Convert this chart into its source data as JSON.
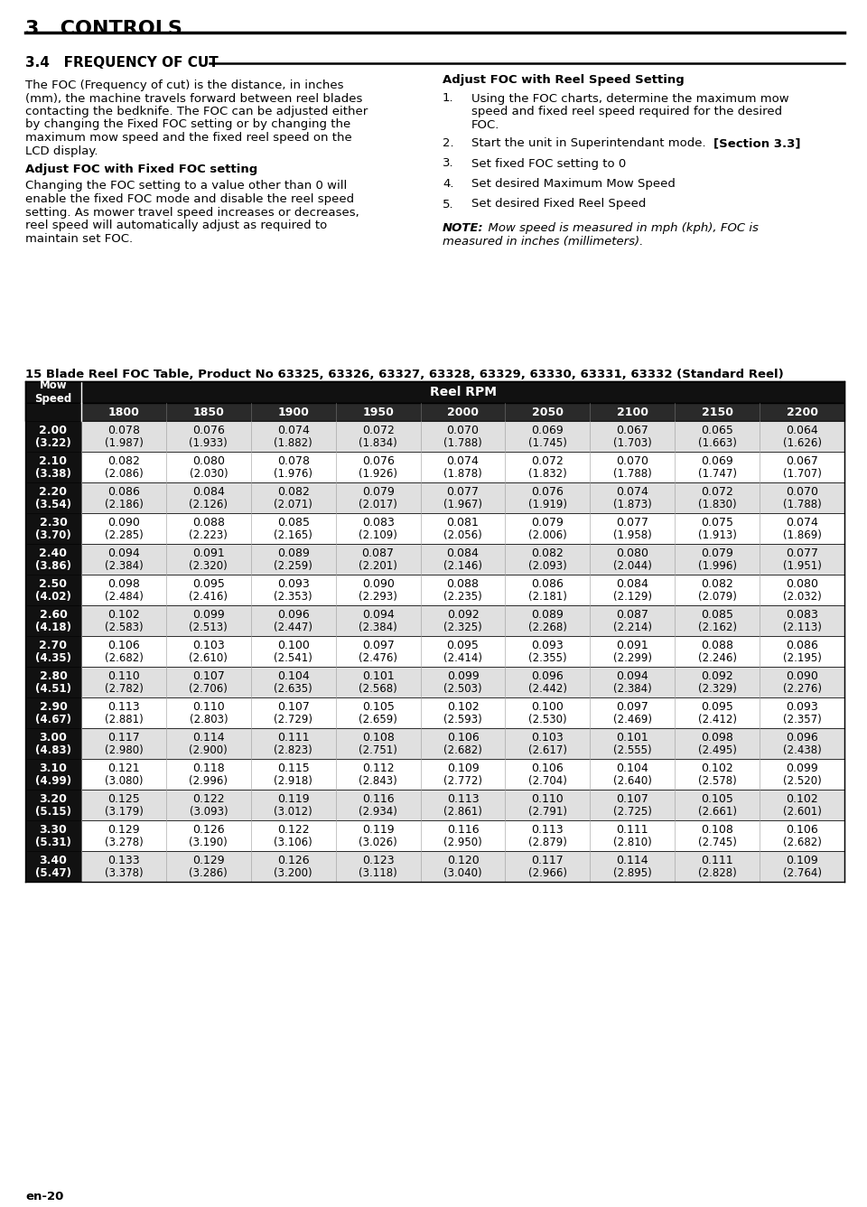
{
  "page_title": "3   CONTROLS",
  "section_title": "3.4   FREQUENCY OF CUT",
  "left_para1_lines": [
    "The FOC (Frequency of cut) is the distance, in inches",
    "(mm), the machine travels forward between reel blades",
    "contacting the bedknife. The FOC can be adjusted either",
    "by changing the Fixed FOC setting or by changing the",
    "maximum mow speed and the fixed reel speed on the",
    "LCD display."
  ],
  "left_heading": "Adjust FOC with Fixed FOC setting",
  "left_para2_lines": [
    "Changing the FOC setting to a value other than 0 will",
    "enable the fixed FOC mode and disable the reel speed",
    "setting. As mower travel speed increases or decreases,",
    "reel speed will automatically adjust as required to",
    "maintain set FOC."
  ],
  "right_heading": "Adjust FOC with Reel Speed Setting",
  "right_items": [
    [
      "Using the FOC charts, determine the maximum mow",
      "speed and fixed reel speed required for the desired",
      "FOC."
    ],
    [
      "Start the unit in Superintendant mode. ",
      "[Section 3.3]"
    ],
    [
      "Set fixed FOC setting to 0"
    ],
    [
      "Set desired Maximum Mow Speed"
    ],
    [
      "Set desired Fixed Reel Speed"
    ]
  ],
  "note_prefix": "NOTE:",
  "note_rest_lines": [
    "  Mow speed is measured in mph (kph), FOC is",
    "measured in inches (millimeters)."
  ],
  "table_title": "15 Blade Reel FOC Table, Product No 63325, 63326, 63327, 63328, 63329, 63330, 63331, 63332 (Standard Reel)",
  "reel_rpms": [
    "1800",
    "1850",
    "1900",
    "1950",
    "2000",
    "2050",
    "2100",
    "2150",
    "2200"
  ],
  "mow_speeds": [
    [
      "2.00",
      "3.22"
    ],
    [
      "2.10",
      "3.38"
    ],
    [
      "2.20",
      "3.54"
    ],
    [
      "2.30",
      "3.70"
    ],
    [
      "2.40",
      "3.86"
    ],
    [
      "2.50",
      "4.02"
    ],
    [
      "2.60",
      "4.18"
    ],
    [
      "2.70",
      "4.35"
    ],
    [
      "2.80",
      "4.51"
    ],
    [
      "2.90",
      "4.67"
    ],
    [
      "3.00",
      "4.83"
    ],
    [
      "3.10",
      "4.99"
    ],
    [
      "3.20",
      "5.15"
    ],
    [
      "3.30",
      "5.31"
    ],
    [
      "3.40",
      "5.47"
    ]
  ],
  "table_data": [
    [
      "0.078",
      "0.076",
      "0.074",
      "0.072",
      "0.070",
      "0.069",
      "0.067",
      "0.065",
      "0.064",
      "1.987",
      "1.933",
      "1.882",
      "1.834",
      "1.788",
      "1.745",
      "1.703",
      "1.663",
      "1.626"
    ],
    [
      "0.082",
      "0.080",
      "0.078",
      "0.076",
      "0.074",
      "0.072",
      "0.070",
      "0.069",
      "0.067",
      "2.086",
      "2.030",
      "1.976",
      "1.926",
      "1.878",
      "1.832",
      "1.788",
      "1.747",
      "1.707"
    ],
    [
      "0.086",
      "0.084",
      "0.082",
      "0.079",
      "0.077",
      "0.076",
      "0.074",
      "0.072",
      "0.070",
      "2.186",
      "2.126",
      "2.071",
      "2.017",
      "1.967",
      "1.919",
      "1.873",
      "1.830",
      "1.788"
    ],
    [
      "0.090",
      "0.088",
      "0.085",
      "0.083",
      "0.081",
      "0.079",
      "0.077",
      "0.075",
      "0.074",
      "2.285",
      "2.223",
      "2.165",
      "2.109",
      "2.056",
      "2.006",
      "1.958",
      "1.913",
      "1.869"
    ],
    [
      "0.094",
      "0.091",
      "0.089",
      "0.087",
      "0.084",
      "0.082",
      "0.080",
      "0.079",
      "0.077",
      "2.384",
      "2.320",
      "2.259",
      "2.201",
      "2.146",
      "2.093",
      "2.044",
      "1.996",
      "1.951"
    ],
    [
      "0.098",
      "0.095",
      "0.093",
      "0.090",
      "0.088",
      "0.086",
      "0.084",
      "0.082",
      "0.080",
      "2.484",
      "2.416",
      "2.353",
      "2.293",
      "2.235",
      "2.181",
      "2.129",
      "2.079",
      "2.032"
    ],
    [
      "0.102",
      "0.099",
      "0.096",
      "0.094",
      "0.092",
      "0.089",
      "0.087",
      "0.085",
      "0.083",
      "2.583",
      "2.513",
      "2.447",
      "2.384",
      "2.325",
      "2.268",
      "2.214",
      "2.162",
      "2.113"
    ],
    [
      "0.106",
      "0.103",
      "0.100",
      "0.097",
      "0.095",
      "0.093",
      "0.091",
      "0.088",
      "0.086",
      "2.682",
      "2.610",
      "2.541",
      "2.476",
      "2.414",
      "2.355",
      "2.299",
      "2.246",
      "2.195"
    ],
    [
      "0.110",
      "0.107",
      "0.104",
      "0.101",
      "0.099",
      "0.096",
      "0.094",
      "0.092",
      "0.090",
      "2.782",
      "2.706",
      "2.635",
      "2.568",
      "2.503",
      "2.442",
      "2.384",
      "2.329",
      "2.276"
    ],
    [
      "0.113",
      "0.110",
      "0.107",
      "0.105",
      "0.102",
      "0.100",
      "0.097",
      "0.095",
      "0.093",
      "2.881",
      "2.803",
      "2.729",
      "2.659",
      "2.593",
      "2.530",
      "2.469",
      "2.412",
      "2.357"
    ],
    [
      "0.117",
      "0.114",
      "0.111",
      "0.108",
      "0.106",
      "0.103",
      "0.101",
      "0.098",
      "0.096",
      "2.980",
      "2.900",
      "2.823",
      "2.751",
      "2.682",
      "2.617",
      "2.555",
      "2.495",
      "2.438"
    ],
    [
      "0.121",
      "0.118",
      "0.115",
      "0.112",
      "0.109",
      "0.106",
      "0.104",
      "0.102",
      "0.099",
      "3.080",
      "2.996",
      "2.918",
      "2.843",
      "2.772",
      "2.704",
      "2.640",
      "2.578",
      "2.520"
    ],
    [
      "0.125",
      "0.122",
      "0.119",
      "0.116",
      "0.113",
      "0.110",
      "0.107",
      "0.105",
      "0.102",
      "3.179",
      "3.093",
      "3.012",
      "2.934",
      "2.861",
      "2.791",
      "2.725",
      "2.661",
      "2.601"
    ],
    [
      "0.129",
      "0.126",
      "0.122",
      "0.119",
      "0.116",
      "0.113",
      "0.111",
      "0.108",
      "0.106",
      "3.278",
      "3.190",
      "3.106",
      "3.026",
      "2.950",
      "2.879",
      "2.810",
      "2.745",
      "2.682"
    ],
    [
      "0.133",
      "0.129",
      "0.126",
      "0.123",
      "0.120",
      "0.117",
      "0.114",
      "0.111",
      "0.109",
      "3.378",
      "3.286",
      "3.200",
      "3.118",
      "3.040",
      "2.966",
      "2.895",
      "2.828",
      "2.764"
    ]
  ],
  "footer_text": "en-20",
  "bg_color": "#ffffff",
  "black": "#000000",
  "white": "#ffffff",
  "dark_header_bg": "#111111",
  "medium_header_bg": "#2a2a2a",
  "row_bg_light": "#e0e0e0",
  "row_bg_white": "#ffffff"
}
